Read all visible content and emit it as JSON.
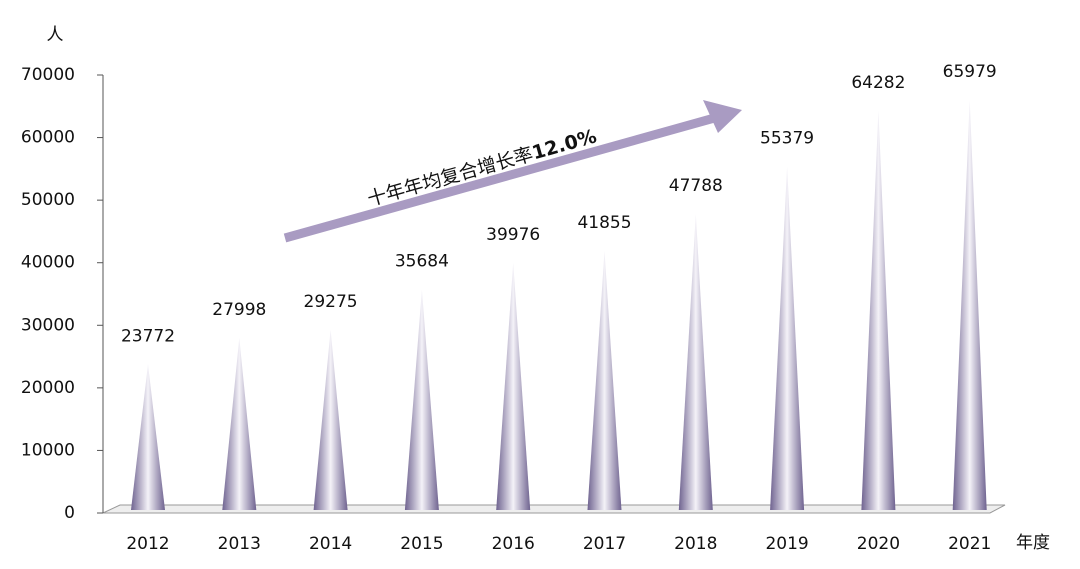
{
  "chart_data": {
    "type": "cone",
    "y_axis_label": "人",
    "x_axis_label": "年度",
    "annotation": {
      "text": "十年年均复合增长率",
      "emphasis": "12.0%"
    },
    "categories": [
      "2012",
      "2013",
      "2014",
      "2015",
      "2016",
      "2017",
      "2018",
      "2019",
      "2020",
      "2021"
    ],
    "values": [
      23772,
      27998,
      29275,
      35684,
      39976,
      41855,
      47788,
      55379,
      64282,
      65979
    ],
    "color": "#6f6390",
    "ylim": [
      0,
      70000
    ],
    "yticks": [
      0,
      10000,
      20000,
      30000,
      40000,
      50000,
      60000,
      70000
    ]
  }
}
